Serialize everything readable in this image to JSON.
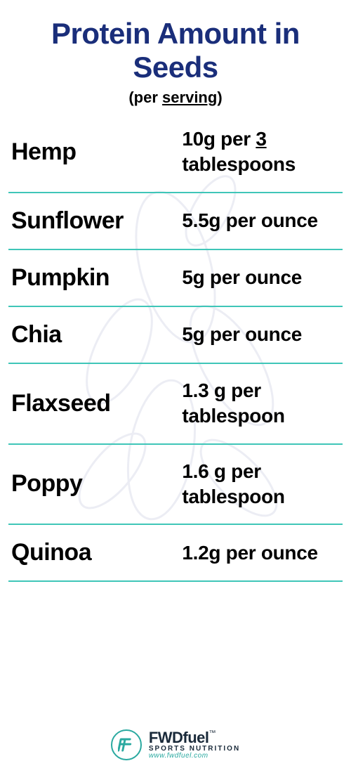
{
  "title": {
    "text": "Protein Amount in Seeds",
    "color": "#1a2e7a",
    "fontsize": 42
  },
  "subtitle": {
    "prefix": "(per ",
    "underlined": "serving",
    "suffix": ")",
    "fontsize": 22
  },
  "divider": {
    "color": "#3fc6b8",
    "width": 2
  },
  "rows": [
    {
      "name": "Hemp",
      "value_pre": "10g per ",
      "value_u": "3",
      "value_post": " tablespoons"
    },
    {
      "name": "Sunflower",
      "value_pre": "5.5g per ounce",
      "value_u": "",
      "value_post": ""
    },
    {
      "name": "Pumpkin",
      "value_pre": "5g per ounce",
      "value_u": "",
      "value_post": ""
    },
    {
      "name": "Chia",
      "value_pre": "5g per ounce",
      "value_u": "",
      "value_post": ""
    },
    {
      "name": "Flaxseed",
      "value_pre": "1.3 g per tablespoon",
      "value_u": "",
      "value_post": ""
    },
    {
      "name": "Poppy",
      "value_pre": "1.6 g per tablespoon",
      "value_u": "",
      "value_post": ""
    },
    {
      "name": "Quinoa",
      "value_pre": "1.2g per ounce",
      "value_u": "",
      "value_post": ""
    }
  ],
  "name_fontsize": 34,
  "value_fontsize": 28,
  "footer": {
    "brand": "FWDfuel",
    "tm": "™",
    "tag": "SPORTS NUTRITION",
    "url": "www.fwdfuel.com",
    "accent_color": "#2aa9a0",
    "text_color": "#1a2a3a"
  },
  "background_color": "#ffffff",
  "watermark_color": "#1a2e7a"
}
